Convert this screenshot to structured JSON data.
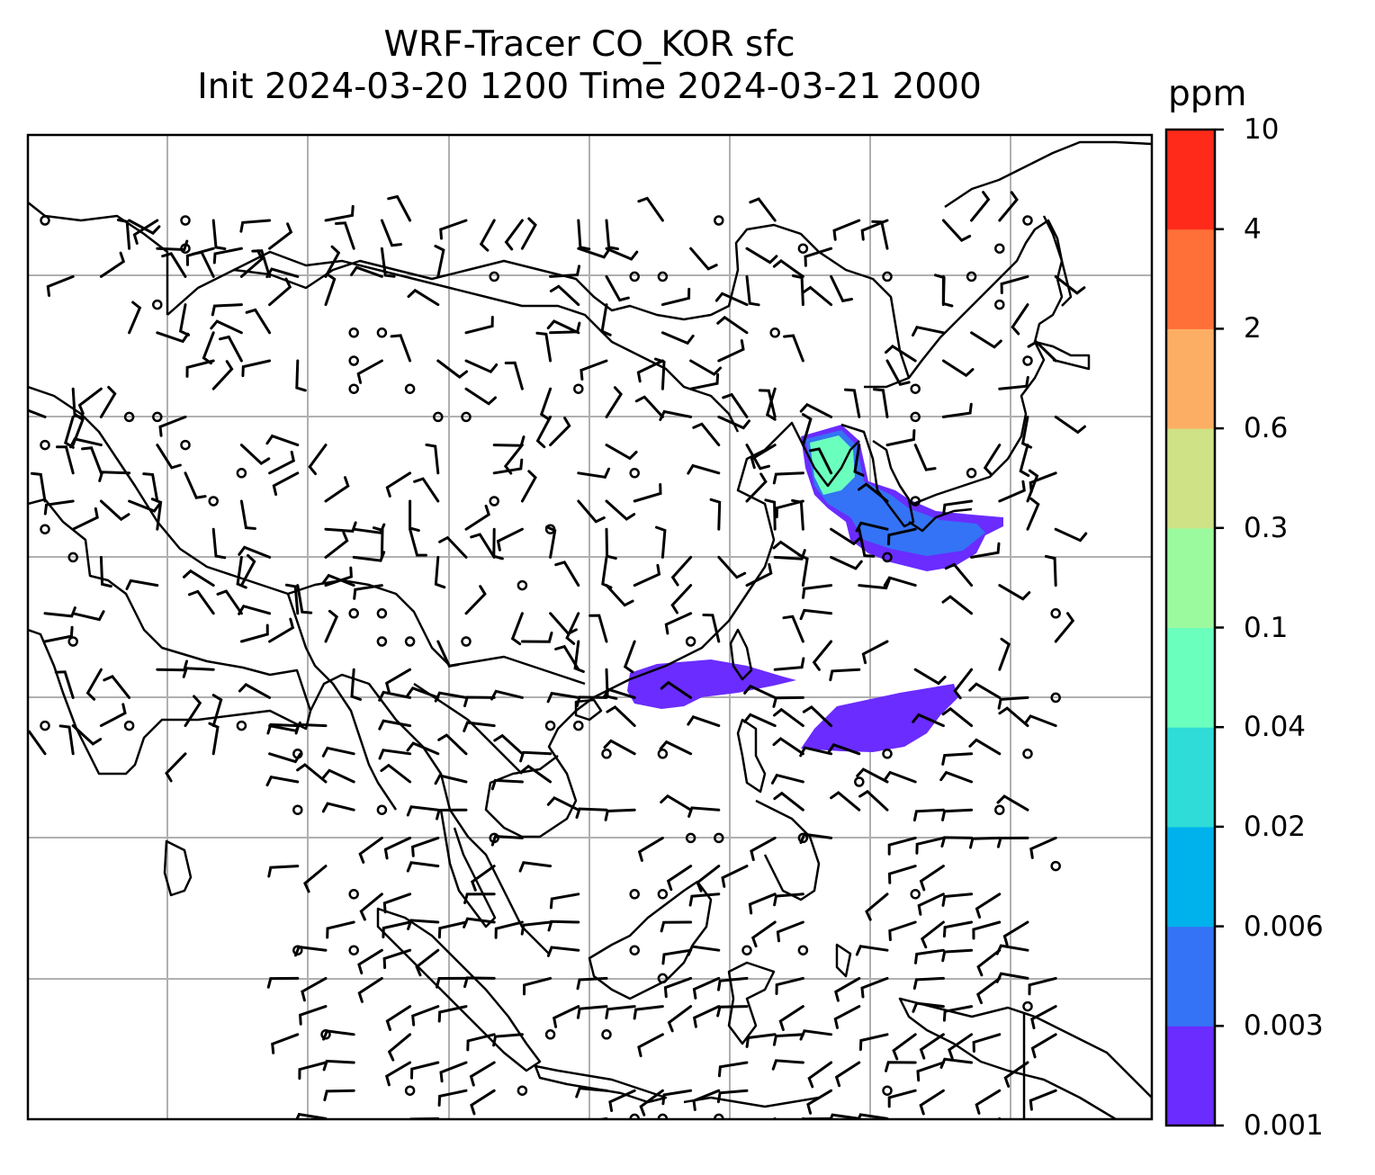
{
  "title": {
    "line1": "WRF-Tracer CO_KOR sfc",
    "line2": "Init 2024-03-20 1200 Time 2024-03-21 2000"
  },
  "colorbar": {
    "unit": "ppm",
    "levels": [
      "0.001",
      "0.003",
      "0.006",
      "0.02",
      "0.04",
      "0.1",
      "0.3",
      "0.6",
      "2",
      "4",
      "10"
    ],
    "colors": [
      "#6a2cff",
      "#3473f5",
      "#00b2ec",
      "#2fdcd8",
      "#6bffbe",
      "#9cfa9e",
      "#cfe285",
      "#fcaf64",
      "#ff7038",
      "#ff2a1a"
    ]
  },
  "map": {
    "coastline_color": "#000000",
    "grid_color": "#b0b0b0",
    "wind_barb_color": "#000000",
    "plume_colors": {
      "low": "#6a2cff",
      "mid": "#3473f5",
      "high": "#6bffbe"
    }
  }
}
